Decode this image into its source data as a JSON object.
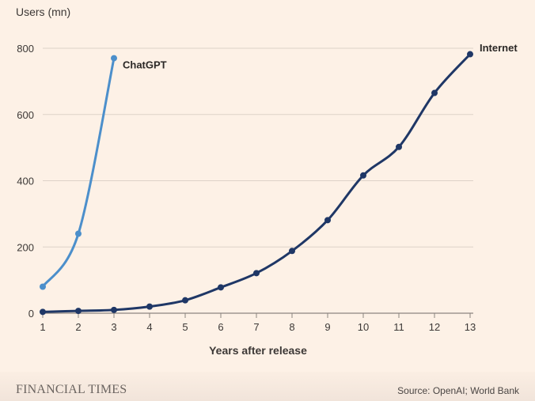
{
  "chart_data": {
    "type": "line",
    "ylabel": "Users (mn)",
    "xlabel": "Years after release",
    "ylim": [
      0,
      800
    ],
    "yticks": [
      0,
      200,
      400,
      600,
      800
    ],
    "xlim": [
      1,
      13
    ],
    "xticks": [
      1,
      2,
      3,
      4,
      5,
      6,
      7,
      8,
      9,
      10,
      11,
      12,
      13
    ],
    "grid": true,
    "series": [
      {
        "name": "ChatGPT",
        "color": "#4c8fcb",
        "x": [
          1,
          2,
          3
        ],
        "values": [
          80,
          240,
          770
        ]
      },
      {
        "name": "Internet",
        "color": "#1f3766",
        "x": [
          1,
          2,
          3,
          4,
          5,
          6,
          7,
          8,
          9,
          10,
          11,
          12,
          13
        ],
        "values": [
          4,
          7,
          10,
          20,
          39,
          78,
          121,
          188,
          281,
          416,
          502,
          665,
          782
        ]
      }
    ]
  },
  "footer": {
    "publisher": "FINANCIAL TIMES",
    "source": "Source: OpenAI; World Bank"
  }
}
